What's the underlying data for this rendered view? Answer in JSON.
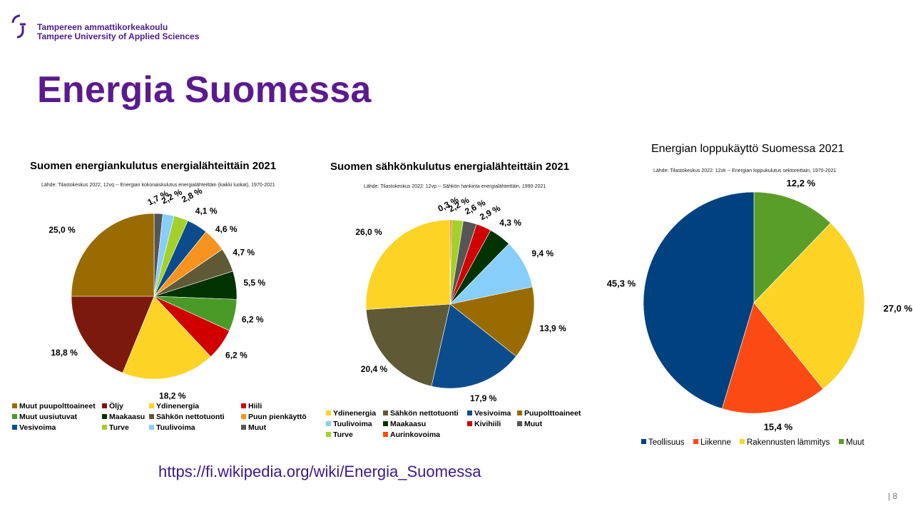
{
  "header": {
    "logo_line1": "Tampereen ammattikorkeakoulu",
    "logo_line2": "Tampere University of Applied Sciences",
    "brand_color": "#4a1e8c"
  },
  "slide": {
    "title": "Energia Suomessa",
    "url": "https://fi.wikipedia.org/wiki/Energia_Suomessa",
    "page_number": "| 8"
  },
  "chart_data": [
    {
      "type": "pie",
      "title": "Suomen energiankulutus energialähteittäin 2021",
      "subtitle": "Lähde: Tilastokeskus 2022, 12vq -- Energian kokonaiskulutus energialähteittäin (kaikki luokat), 1970-2021",
      "slices": [
        {
          "label": "Muut",
          "value": 1.7,
          "value_label": "1,7 %",
          "color": "#555555"
        },
        {
          "label": "Tuulivoima",
          "value": 2.2,
          "value_label": "2,2 %",
          "color": "#87cefa"
        },
        {
          "label": "Turve",
          "value": 2.8,
          "value_label": "2,8 %",
          "color": "#a3d12a"
        },
        {
          "label": "Vesivoima",
          "value": 4.1,
          "value_label": "4,1 %",
          "color": "#0b4d8c"
        },
        {
          "label": "Puun pienkäyttö",
          "value": 4.6,
          "value_label": "4,6 %",
          "color": "#f7931e"
        },
        {
          "label": "Sähkön nettotuonti",
          "value": 4.7,
          "value_label": "4,7 %",
          "color": "#5f5a35"
        },
        {
          "label": "Maakaasu",
          "value": 5.5,
          "value_label": "5,5 %",
          "color": "#003300"
        },
        {
          "label": "Muut uusiutuvat",
          "value": 6.2,
          "value_label": "6,2 %",
          "color": "#4a9a28"
        },
        {
          "label": "Hiili",
          "value": 6.2,
          "value_label": "6,2 %",
          "color": "#d10000"
        },
        {
          "label": "Ydinenergia",
          "value": 18.2,
          "value_label": "18,2 %",
          "color": "#fdd325"
        },
        {
          "label": "Öljy",
          "value": 18.8,
          "value_label": "18,8 %",
          "color": "#7b1a0c"
        },
        {
          "label": "Muut puupolttoaineet",
          "value": 25.0,
          "value_label": "25,0 %",
          "color": "#9a6b00"
        }
      ],
      "legend": [
        "Muut puupolttoaineet",
        "Öljy",
        "Ydinenergia",
        "Hiili",
        "Muut uusiutuvat",
        "Maakaasu",
        "Sähkön nettotuonti",
        "Puun pienkäyttö",
        "Vesivoima",
        "Turve",
        "Tuulivoima",
        "Muut"
      ]
    },
    {
      "type": "pie",
      "title": "Suomen sähkönkulutus energialähteittäin 2021",
      "subtitle": "Lähde: Tilastokeskus 2022: 12vp -- Sähkön hankinta energialähteittäin, 1990-2021",
      "slices": [
        {
          "label": "Aurinkovoima",
          "value": 0.3,
          "value_label": "0,3 %",
          "color": "#ff4d00"
        },
        {
          "label": "Turve",
          "value": 2.2,
          "value_label": "2,2 %",
          "color": "#a3d12a"
        },
        {
          "label": "Muut",
          "value": 2.6,
          "value_label": "2,6 %",
          "color": "#555555"
        },
        {
          "label": "Kivihiili",
          "value": 2.9,
          "value_label": "2,9 %",
          "color": "#d10000"
        },
        {
          "label": "Maakaasu",
          "value": 4.3,
          "value_label": "4,3 %",
          "color": "#003300"
        },
        {
          "label": "Tuulivoima",
          "value": 9.4,
          "value_label": "9,4 %",
          "color": "#87cefa"
        },
        {
          "label": "Puupolttoaineet",
          "value": 13.9,
          "value_label": "13,9 %",
          "color": "#9a6b00"
        },
        {
          "label": "Vesivoima",
          "value": 17.9,
          "value_label": "17,9 %",
          "color": "#0b4d8c"
        },
        {
          "label": "Sähkön nettotuonti",
          "value": 20.4,
          "value_label": "20,4 %",
          "color": "#5f5a35"
        },
        {
          "label": "Ydinenergia",
          "value": 26.0,
          "value_label": "26,0 %",
          "color": "#fdd325"
        }
      ],
      "legend": [
        "Ydinenergia",
        "Sähkön nettotuonti",
        "Vesivoima",
        "Puupolttoaineet",
        "Tuulivoima",
        "Maakaasu",
        "Kivihiili",
        "Muut",
        "Turve",
        "Aurinkovoima"
      ]
    },
    {
      "type": "pie",
      "title": "Energian loppukäyttö Suomessa 2021",
      "subtitle": "Lähde: Tilastokeskus 2022: 12vk -- Energian loppukulutus sektoreittain, 1970-2021",
      "slices": [
        {
          "label": "Muut",
          "value": 12.2,
          "value_label": "12,2 %",
          "color": "#5a9e2a"
        },
        {
          "label": "Rakennusten lämmitys",
          "value": 27.0,
          "value_label": "27,0 %",
          "color": "#fdd325"
        },
        {
          "label": "Liikenne",
          "value": 15.4,
          "value_label": "15,4 %",
          "color": "#fc4a14"
        },
        {
          "label": "Teollisuus",
          "value": 45.3,
          "value_label": "45,3 %",
          "color": "#00427f"
        }
      ],
      "legend": [
        "Teollisuus",
        "Liikenne",
        "Rakennusten lämmitys",
        "Muut"
      ]
    }
  ]
}
